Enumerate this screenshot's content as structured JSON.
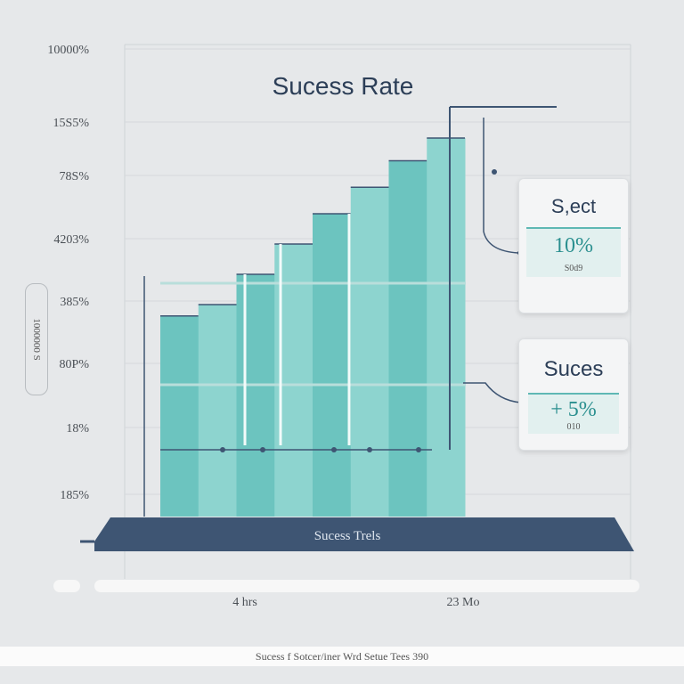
{
  "chart_data": {
    "type": "bar",
    "title": "Sucess Rate",
    "y_tick_labels": [
      "10000%",
      "15S5%",
      "78S%",
      "4203%",
      "385%",
      "80P%",
      "18%",
      "185%"
    ],
    "x_tick_labels": [
      "4 hrs",
      "23 Mo"
    ],
    "values": [
      53,
      56,
      64,
      72,
      80,
      87,
      94,
      100
    ],
    "ylim": [
      0,
      100
    ],
    "grid": true,
    "legend_vertical": "1000000 S",
    "base_band_label": "Sucess Trels",
    "footer": "Sucess f Sotcer/iner Wrd Setue Tees 390",
    "callouts": [
      {
        "title": "S,ect",
        "value": "10%",
        "sub": "S0d9"
      },
      {
        "title": "Suces",
        "value": "+ 5%",
        "sub": "010"
      }
    ]
  },
  "colors": {
    "bar": "#6cc4bf",
    "bar_light": "#8dd4cf",
    "band": "#3e5573",
    "accent": "#2a8f8f",
    "title": "#2c3e57"
  }
}
